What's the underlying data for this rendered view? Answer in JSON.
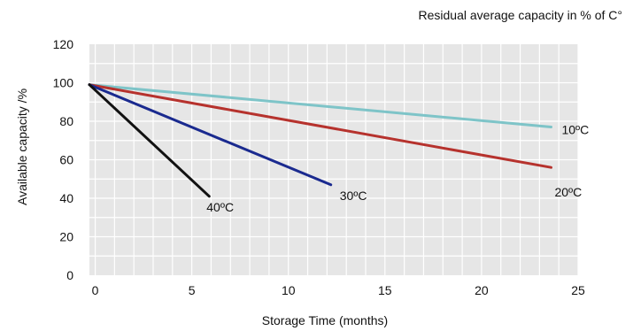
{
  "chart_data": {
    "type": "line",
    "title": "Residual average capacity in % of C°",
    "xlabel": "Storage Time (months)",
    "ylabel": "Available capacity /%",
    "xlim": [
      -0.3,
      25
    ],
    "ylim": [
      0,
      120
    ],
    "x_ticks": [
      0,
      5,
      10,
      15,
      20,
      25
    ],
    "y_ticks": [
      0,
      20,
      40,
      60,
      80,
      100,
      120
    ],
    "grid": true,
    "background": "#e6e6e6",
    "series": [
      {
        "name": "10ºC",
        "color": "#7ec4c8",
        "points": [
          [
            -0.3,
            99
          ],
          [
            23.6,
            77
          ]
        ]
      },
      {
        "name": "20ºC",
        "color": "#b6322d",
        "points": [
          [
            -0.3,
            99
          ],
          [
            23.6,
            56
          ]
        ]
      },
      {
        "name": "30ºC",
        "color": "#1a2a8f",
        "points": [
          [
            -0.3,
            99
          ],
          [
            12.2,
            47
          ]
        ]
      },
      {
        "name": "40ºC",
        "color": "#111111",
        "points": [
          [
            -0.3,
            99
          ],
          [
            5.9,
            41
          ]
        ]
      }
    ]
  }
}
